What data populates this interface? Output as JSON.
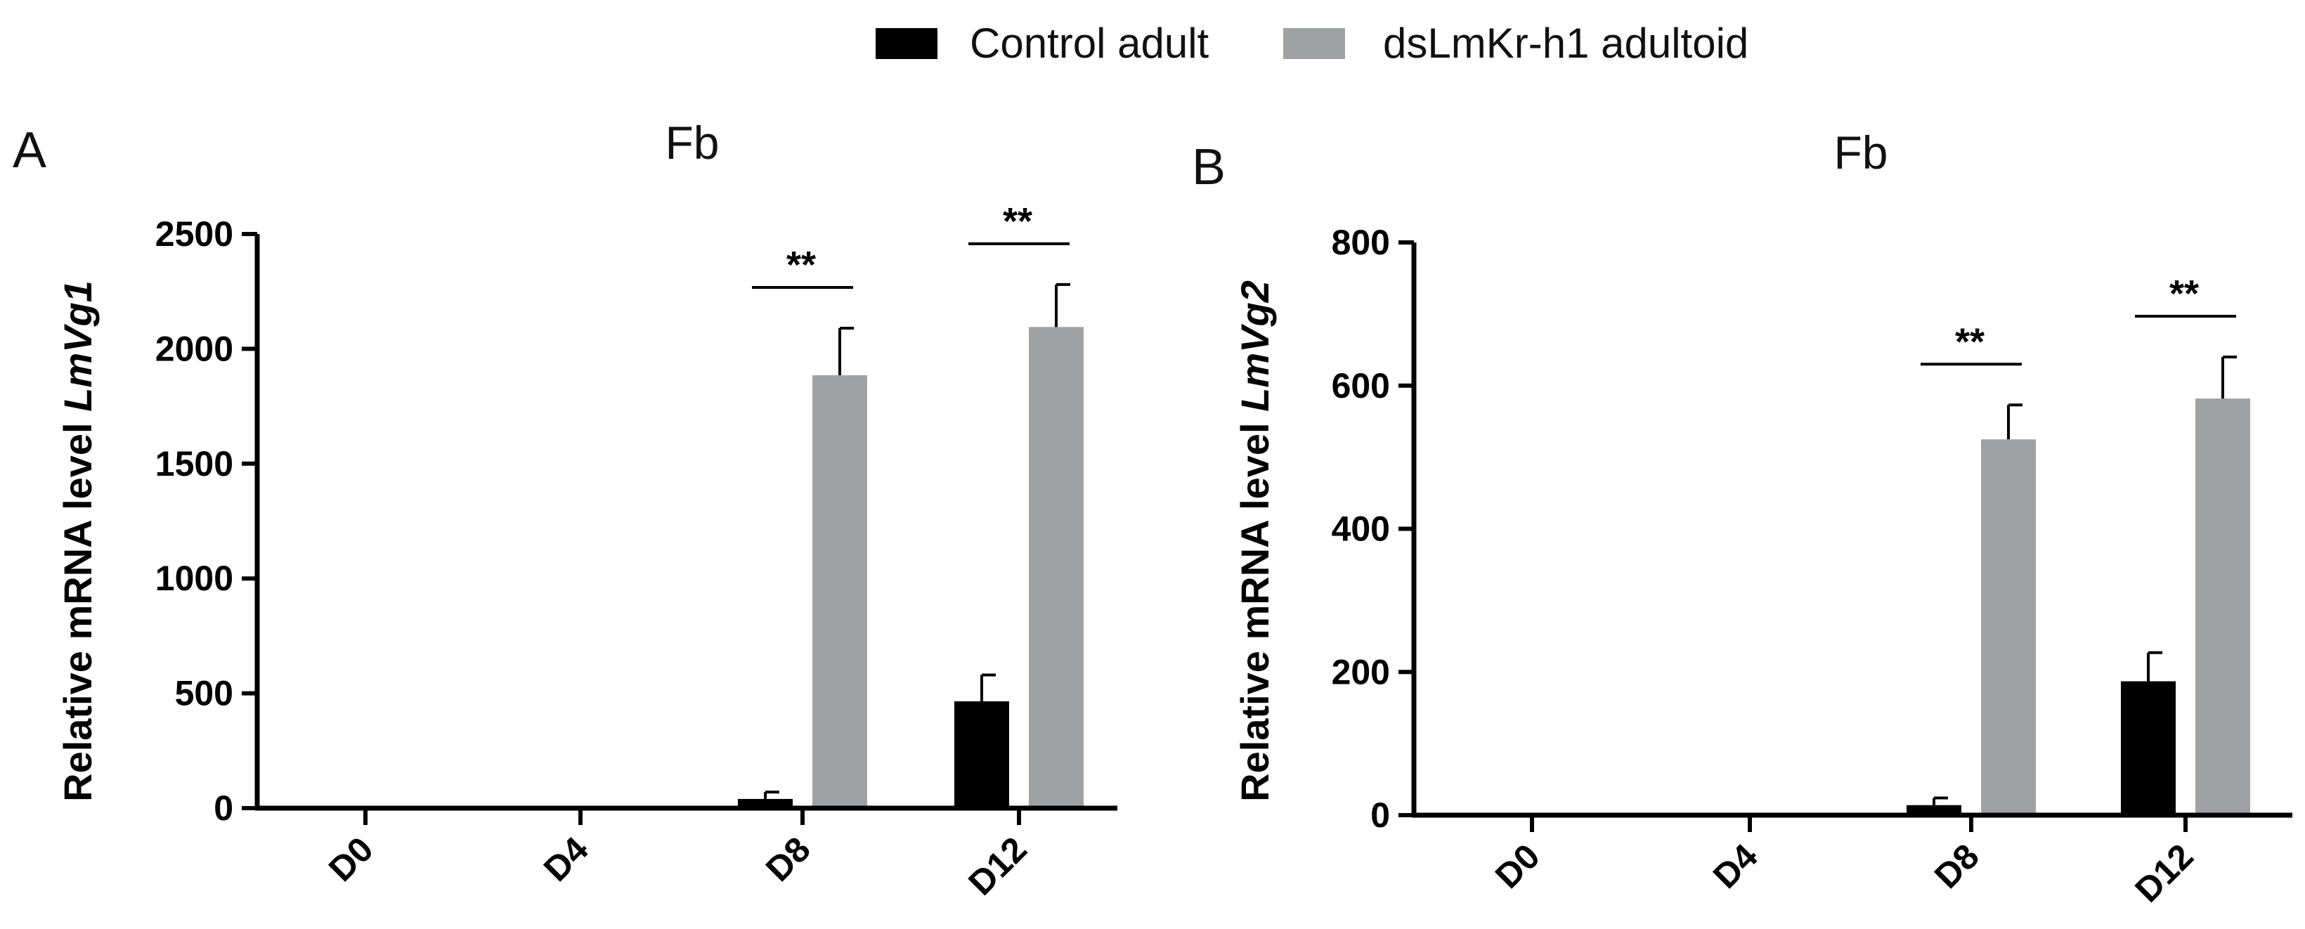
{
  "legend": [
    {
      "label": "Control adult",
      "color": "#000000"
    },
    {
      "label": "dsLmKr-h1 adultoid",
      "color": "#a0a1a4"
    }
  ],
  "chart_data": [
    {
      "panel": "A",
      "type": "bar",
      "title": "Fb",
      "ylabel_prefix": "Relative mRNA level ",
      "ylabel_gene": "LmVg1",
      "categories": [
        "D0",
        "D4",
        "D8",
        "D12"
      ],
      "ylim": [
        0,
        2500
      ],
      "yticks": [
        0,
        500,
        1000,
        1500,
        2000,
        2500
      ],
      "ytick_labels": [
        "0",
        "500",
        "1000",
        "1500",
        "2000",
        "2500"
      ],
      "series": [
        {
          "name": "Control adult",
          "values": [
            0,
            0,
            40,
            465
          ],
          "errors": [
            0,
            0,
            30,
            115
          ]
        },
        {
          "name": "dsLmKr-h1 adultoid",
          "values": [
            0,
            0,
            1885,
            2095
          ],
          "errors": [
            0,
            0,
            205,
            185
          ]
        }
      ],
      "significance": [
        {
          "category": "D8",
          "label": "**"
        },
        {
          "category": "D12",
          "label": "**"
        }
      ]
    },
    {
      "panel": "B",
      "type": "bar",
      "title": "Fb",
      "ylabel_prefix": "Relative mRNA level ",
      "ylabel_gene": "LmVg2",
      "categories": [
        "D0",
        "D4",
        "D8",
        "D12"
      ],
      "ylim": [
        0,
        800
      ],
      "yticks": [
        0,
        200,
        400,
        600,
        800
      ],
      "ytick_labels": [
        "0",
        "200",
        "400",
        "600",
        "800"
      ],
      "series": [
        {
          "name": "Control adult",
          "values": [
            0,
            0,
            14,
            187
          ],
          "errors": [
            0,
            0,
            10,
            40
          ]
        },
        {
          "name": "dsLmKr-h1 adultoid",
          "values": [
            0,
            0,
            525,
            582
          ],
          "errors": [
            0,
            0,
            48,
            58
          ]
        }
      ],
      "significance": [
        {
          "category": "D8",
          "label": "**"
        },
        {
          "category": "D12",
          "label": "**"
        }
      ]
    }
  ]
}
